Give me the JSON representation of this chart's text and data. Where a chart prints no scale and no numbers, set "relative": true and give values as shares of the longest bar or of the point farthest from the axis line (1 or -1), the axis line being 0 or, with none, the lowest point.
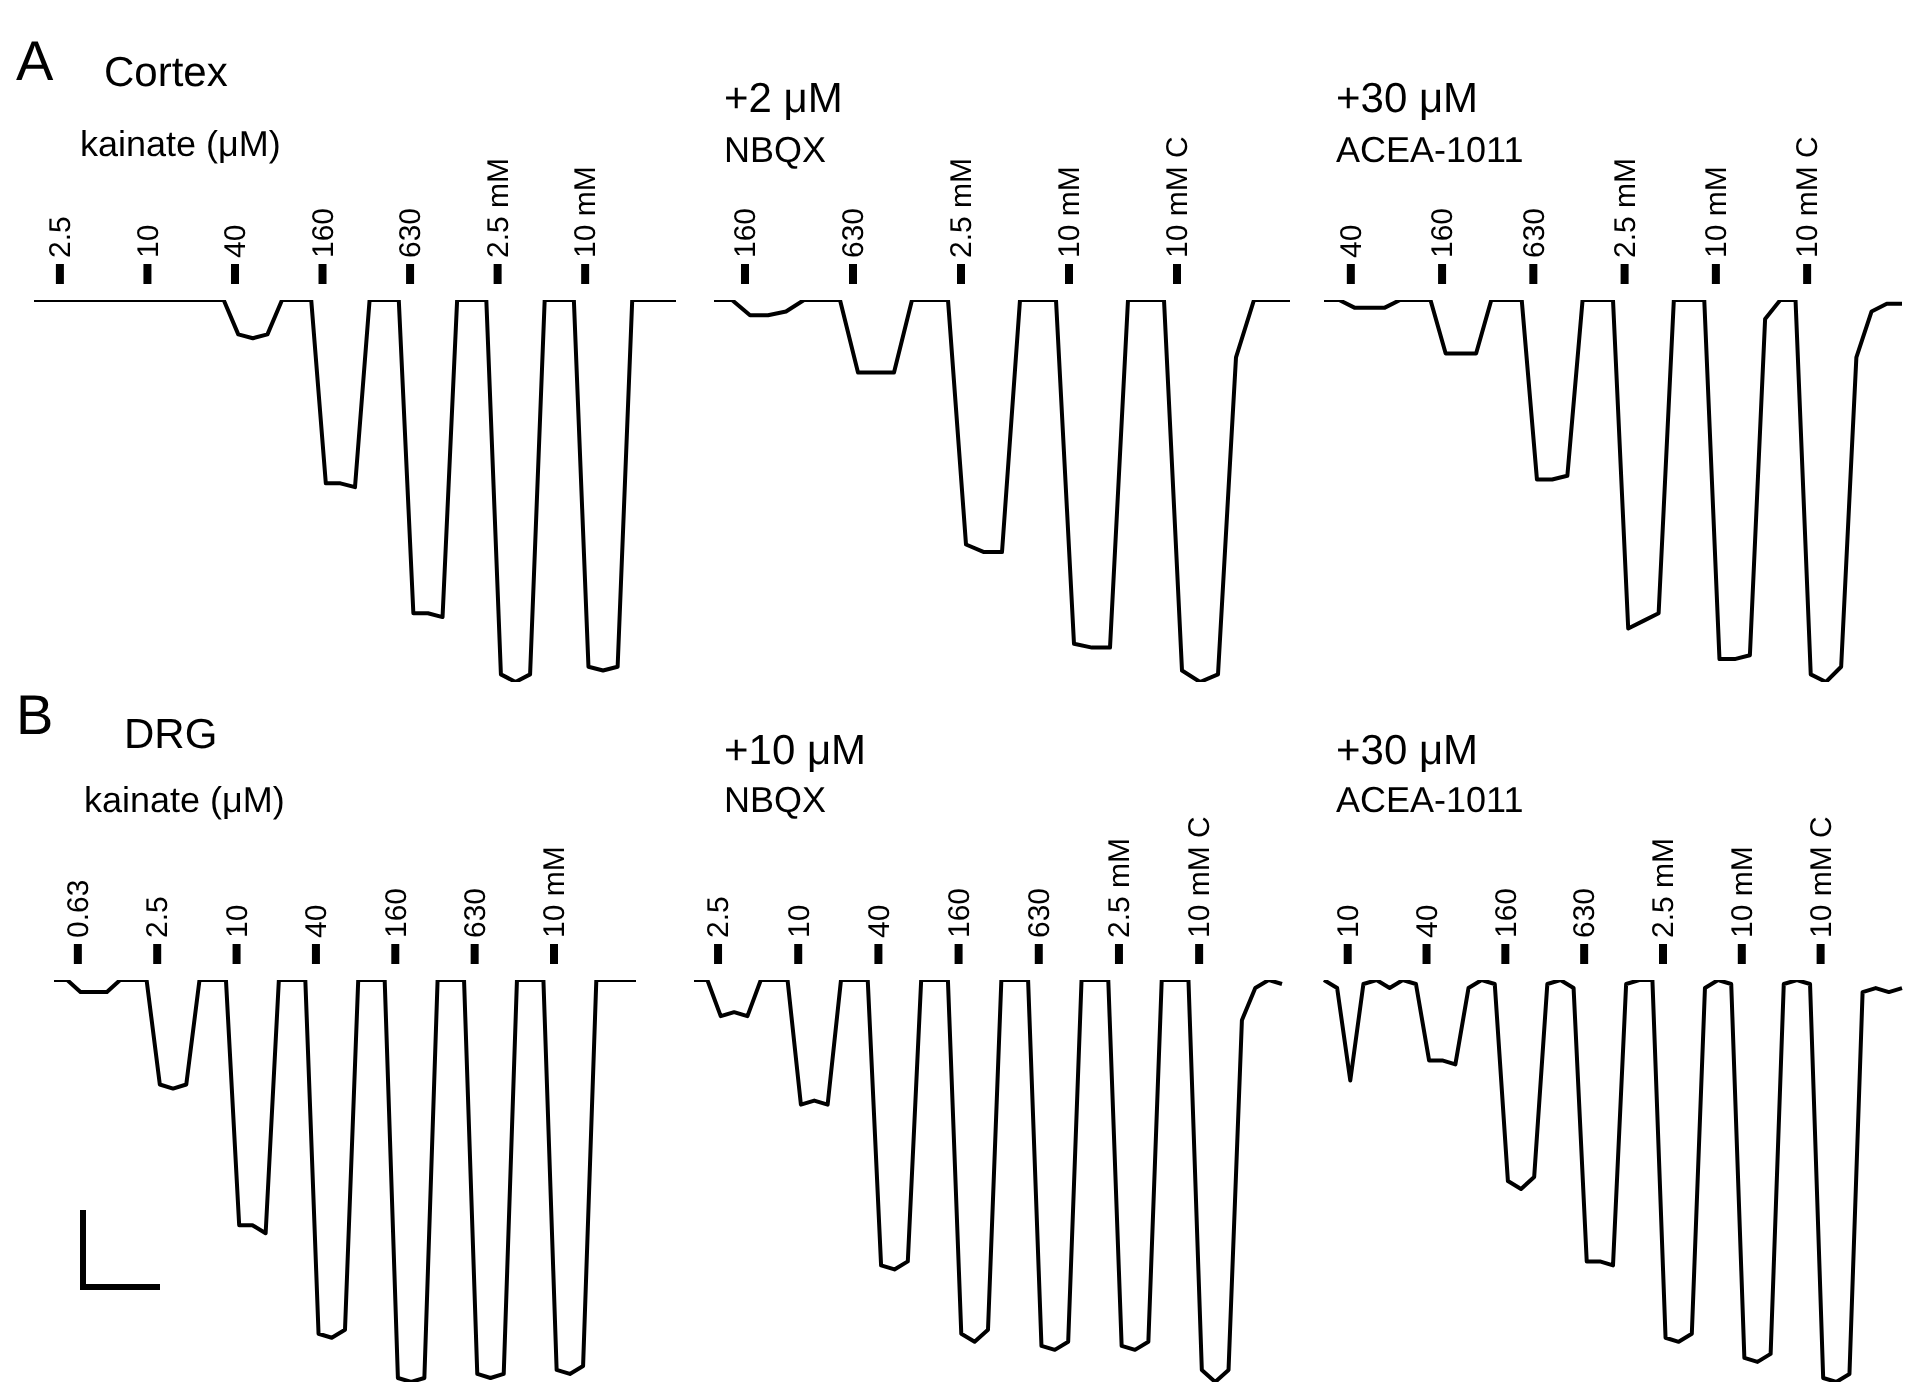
{
  "chart_data": [
    {
      "type": "line",
      "ylabel": "A",
      "title": "Cortex",
      "subtitle": "kainate (μM)",
      "relative": true,
      "color": "#000000",
      "annotations": [
        "2.5",
        "10",
        "40",
        "160",
        "630",
        "2.5 mM",
        "10 mM"
      ],
      "categories": [
        null,
        null,
        null,
        null,
        null,
        null,
        null,
        null,
        null,
        null,
        null,
        null,
        null,
        null,
        null,
        null,
        null,
        null,
        null,
        null,
        null,
        null,
        null,
        null,
        null,
        null,
        null,
        null,
        null,
        null,
        null,
        null,
        null,
        null,
        null,
        null,
        null,
        null,
        null,
        null,
        null,
        null,
        null,
        null,
        null
      ],
      "values": [
        1,
        1,
        1,
        1,
        1,
        1,
        1,
        1,
        1,
        1,
        1,
        1,
        1,
        1,
        0.91,
        0.9,
        0.91,
        1,
        1,
        1,
        0.52,
        0.52,
        0.51,
        1,
        1,
        1,
        0.18,
        0.18,
        0.17,
        1,
        1,
        1,
        0.02,
        0,
        0.02,
        1,
        1,
        1,
        0.04,
        0.03,
        0.04,
        1,
        1,
        1,
        1
      ]
    },
    {
      "type": "line",
      "title": "+2 μM",
      "subtitle": "NBQX",
      "relative": true,
      "color": "#000000",
      "annotations": [
        "160",
        "630",
        "2.5 mM",
        "10 mM",
        "10 mM C"
      ],
      "categories": [
        null,
        null,
        null,
        null,
        null,
        null,
        null,
        null,
        null,
        null,
        null,
        null,
        null,
        null,
        null,
        null,
        null,
        null,
        null,
        null,
        null,
        null,
        null,
        null,
        null,
        null,
        null,
        null,
        null,
        null,
        null,
        null,
        null
      ],
      "values": [
        1,
        1,
        0.96,
        0.96,
        0.97,
        1,
        1,
        1,
        0.81,
        0.81,
        0.81,
        1,
        1,
        1,
        0.36,
        0.34,
        0.34,
        1,
        1,
        1,
        0.1,
        0.09,
        0.09,
        1,
        1,
        1,
        0.03,
        0,
        0.02,
        0.85,
        1,
        1,
        1
      ]
    },
    {
      "type": "line",
      "title": "+30 μM",
      "subtitle": "ACEA-1011",
      "relative": true,
      "color": "#000000",
      "annotations": [
        "40",
        "160",
        "630",
        "2.5 mM",
        "10 mM",
        "10 mM C"
      ],
      "categories": [
        null,
        null,
        null,
        null,
        null,
        null,
        null,
        null,
        null,
        null,
        null,
        null,
        null,
        null,
        null,
        null,
        null,
        null,
        null,
        null,
        null,
        null,
        null,
        null,
        null,
        null,
        null,
        null,
        null,
        null,
        null,
        null,
        null,
        null,
        null,
        null,
        null,
        null,
        null
      ],
      "values": [
        1,
        1,
        0.98,
        0.98,
        0.98,
        1,
        1,
        1,
        0.86,
        0.86,
        0.86,
        1,
        1,
        1,
        0.53,
        0.53,
        0.54,
        1,
        1,
        1,
        0.14,
        0.16,
        0.18,
        1,
        1,
        1,
        0.06,
        0.06,
        0.07,
        0.95,
        1,
        1,
        0.02,
        0,
        0.04,
        0.85,
        0.97,
        0.99,
        0.99
      ]
    },
    {
      "type": "line",
      "ylabel": "B",
      "title": "DRG",
      "subtitle": "kainate (μM)",
      "relative": true,
      "color": "#000000",
      "annotations": [
        "0.63",
        "2.5",
        "10",
        "40",
        "160",
        "630",
        "10 mM"
      ],
      "categories": [
        null,
        null,
        null,
        null,
        null,
        null,
        null,
        null,
        null,
        null,
        null,
        null,
        null,
        null,
        null,
        null,
        null,
        null,
        null,
        null,
        null,
        null,
        null,
        null,
        null,
        null,
        null,
        null,
        null,
        null,
        null,
        null,
        null,
        null,
        null,
        null,
        null,
        null,
        null,
        null,
        null,
        null,
        null,
        null,
        null
      ],
      "values": [
        1,
        1,
        0.97,
        0.97,
        0.97,
        1,
        1,
        1,
        0.74,
        0.73,
        0.74,
        1,
        1,
        1,
        0.39,
        0.39,
        0.37,
        1,
        1,
        1,
        0.12,
        0.11,
        0.13,
        1,
        1,
        1,
        0.01,
        0,
        0.01,
        1,
        1,
        1,
        0.02,
        0.01,
        0.02,
        1,
        1,
        1,
        0.03,
        0.02,
        0.04,
        1,
        1,
        1,
        1
      ]
    },
    {
      "type": "line",
      "title": "+10 μM",
      "subtitle": "NBQX",
      "relative": true,
      "color": "#000000",
      "annotations": [
        "2.5",
        "10",
        "40",
        "160",
        "630",
        "2.5 mM",
        "10 mM C"
      ],
      "categories": [
        null,
        null,
        null,
        null,
        null,
        null,
        null,
        null,
        null,
        null,
        null,
        null,
        null,
        null,
        null,
        null,
        null,
        null,
        null,
        null,
        null,
        null,
        null,
        null,
        null,
        null,
        null,
        null,
        null,
        null,
        null,
        null,
        null,
        null,
        null,
        null,
        null,
        null,
        null,
        null,
        null,
        null,
        null,
        null,
        null
      ],
      "values": [
        1,
        1,
        0.91,
        0.92,
        0.91,
        1,
        1,
        1,
        0.69,
        0.7,
        0.69,
        1,
        1,
        1,
        0.29,
        0.28,
        0.3,
        1,
        1,
        1,
        0.12,
        0.1,
        0.13,
        1,
        1,
        1,
        0.09,
        0.08,
        0.1,
        1,
        1,
        1,
        0.09,
        0.08,
        0.1,
        1,
        1,
        1,
        0.03,
        0,
        0.03,
        0.9,
        0.98,
        1,
        0.99
      ]
    },
    {
      "type": "line",
      "title": "+30 μM",
      "subtitle": "ACEA-1011",
      "relative": true,
      "color": "#000000",
      "annotations": [
        "10",
        "40",
        "160",
        "630",
        "2.5 mM",
        "10 mM",
        "10 mM C"
      ],
      "categories": [
        null,
        null,
        null,
        null,
        null,
        null,
        null,
        null,
        null,
        null,
        null,
        null,
        null,
        null,
        null,
        null,
        null,
        null,
        null,
        null,
        null,
        null,
        null,
        null,
        null,
        null,
        null,
        null,
        null,
        null,
        null,
        null,
        null,
        null,
        null,
        null,
        null,
        null,
        null,
        null,
        null,
        null,
        null,
        null,
        null
      ],
      "values": [
        1,
        0.98,
        0.75,
        0.99,
        1,
        0.98,
        1,
        0.99,
        0.8,
        0.8,
        0.79,
        0.98,
        1,
        0.99,
        0.5,
        0.48,
        0.51,
        0.99,
        1,
        0.98,
        0.3,
        0.3,
        0.29,
        0.99,
        1,
        1,
        0.11,
        0.1,
        0.12,
        0.98,
        1,
        0.99,
        0.06,
        0.05,
        0.07,
        0.99,
        1,
        0.99,
        0.01,
        0,
        0.02,
        0.97,
        0.98,
        0.97,
        0.98
      ]
    }
  ]
}
